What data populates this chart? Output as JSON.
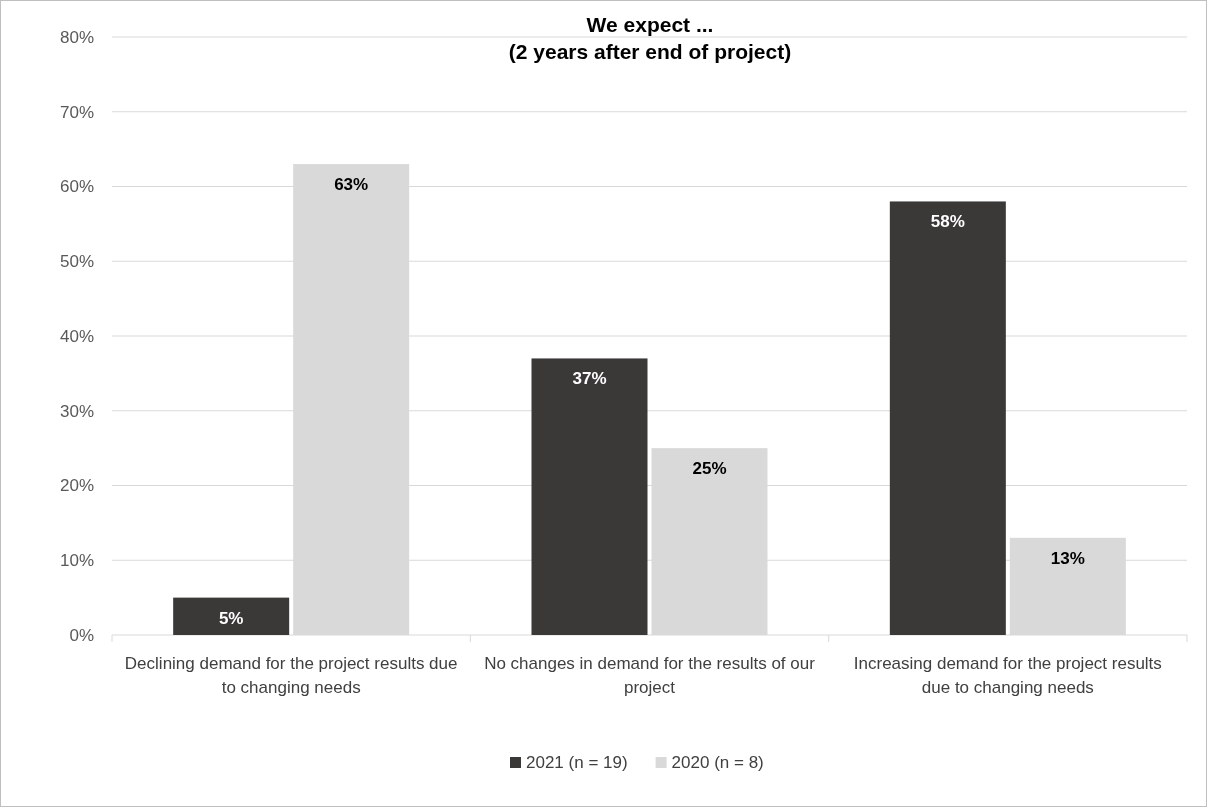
{
  "chart_data": {
    "type": "bar",
    "title": "We expect ...\n(2 years after end of project)",
    "categories": [
      "Declining demand for the project results due to changing needs",
      "No changes in demand for the results of our project",
      "Increasing demand for the project results due to changing needs"
    ],
    "series": [
      {
        "name": "2021 (n = 19)",
        "color": "#3b3838",
        "values": [
          5,
          37,
          58
        ],
        "value_labels": [
          "5%",
          "37%",
          "58%"
        ]
      },
      {
        "name": "2020 (n = 8)",
        "color": "#d9d9d9",
        "values": [
          63,
          25,
          13
        ],
        "value_labels": [
          "63%",
          "25%",
          "13%"
        ]
      }
    ],
    "ylim": [
      0,
      80
    ],
    "yticks": [
      {
        "value": 0,
        "label": "0%"
      },
      {
        "value": 10,
        "label": "10%"
      },
      {
        "value": 20,
        "label": "20%"
      },
      {
        "value": 30,
        "label": "30%"
      },
      {
        "value": 40,
        "label": "40%"
      },
      {
        "value": 50,
        "label": "50%"
      },
      {
        "value": 60,
        "label": "60%"
      },
      {
        "value": 70,
        "label": "70%"
      },
      {
        "value": 80,
        "label": "80%"
      }
    ],
    "grid": "y",
    "legend": "bottom"
  }
}
